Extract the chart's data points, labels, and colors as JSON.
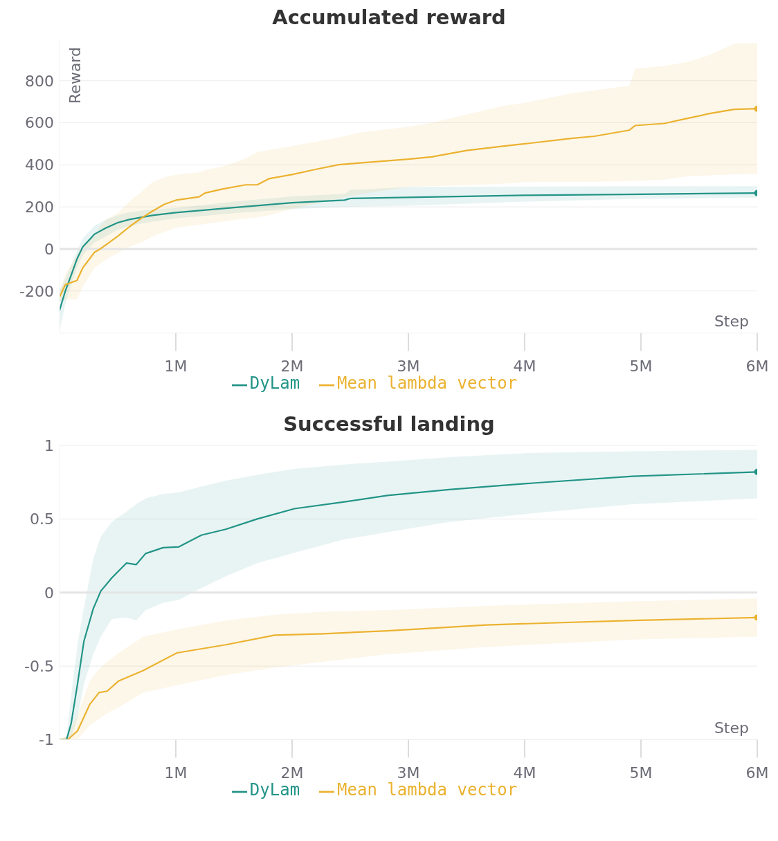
{
  "chart_data": [
    {
      "type": "line",
      "title": "Accumulated reward",
      "xlabel": "Step",
      "ylabel": "Reward",
      "xlim": [
        0,
        6000000
      ],
      "xticks": [
        {
          "value": 1000000,
          "label": "1M"
        },
        {
          "value": 2000000,
          "label": "2M"
        },
        {
          "value": 3000000,
          "label": "3M"
        },
        {
          "value": 4000000,
          "label": "4M"
        },
        {
          "value": 5000000,
          "label": "5M"
        },
        {
          "value": 6000000,
          "label": "6M"
        }
      ],
      "ylim": [
        -400,
        1000
      ],
      "yticks": [
        -200,
        0,
        200,
        400,
        600,
        800
      ],
      "grid": "y",
      "legend": "bottom",
      "ref_lines": [
        {
          "axis": "y",
          "value": 0,
          "color": "#e4e4e4"
        }
      ],
      "series": [
        {
          "name": "DyLam",
          "color": "#229487",
          "x": [
            0,
            50000,
            100000,
            150000,
            200000,
            300000,
            400000,
            500000,
            600000,
            800000,
            1000000,
            1500000,
            2000000,
            2450000,
            2500000,
            3000000,
            4000000,
            5000000,
            6000000
          ],
          "values": [
            -292,
            -200,
            -125,
            -48,
            10,
            70,
            100,
            125,
            140,
            160,
            173,
            197,
            220,
            232,
            240,
            245,
            255,
            260,
            266
          ],
          "lower": [
            -390,
            -260,
            -170,
            -90,
            -30,
            30,
            60,
            90,
            110,
            130,
            145,
            170,
            190,
            200,
            200,
            205,
            225,
            238,
            244
          ],
          "upper": [
            -200,
            -140,
            -80,
            -10,
            50,
            110,
            140,
            160,
            175,
            188,
            195,
            225,
            250,
            262,
            280,
            295,
            297,
            298,
            298
          ]
        },
        {
          "name": "Mean lambda vector",
          "color": "#ebb22f",
          "x": [
            0,
            50000,
            150000,
            200000,
            300000,
            350000,
            400000,
            500000,
            600000,
            700000,
            800000,
            900000,
            1000000,
            1200000,
            1250000,
            1400000,
            1600000,
            1700000,
            1800000,
            2000000,
            2200000,
            2400000,
            2600000,
            3000000,
            3200000,
            3500000,
            3800000,
            4000000,
            4400000,
            4600000,
            4900000,
            4950000,
            5200000,
            5400000,
            5600000,
            5800000,
            6000000
          ],
          "values": [
            -228,
            -170,
            -150,
            -90,
            -16,
            0,
            20,
            60,
            105,
            145,
            180,
            212,
            232,
            248,
            266,
            285,
            305,
            305,
            334,
            354,
            378,
            401,
            410,
            427,
            438,
            468,
            488,
            500,
            526,
            536,
            565,
            587,
            597,
            621,
            645,
            664,
            667
          ],
          "lower": [
            -250,
            -240,
            -240,
            -180,
            -90,
            -70,
            -50,
            -20,
            10,
            30,
            60,
            80,
            100,
            115,
            118,
            130,
            145,
            150,
            160,
            190,
            215,
            240,
            262,
            295,
            298,
            303,
            310,
            318,
            320,
            320,
            322,
            324,
            330,
            345,
            350,
            355,
            357
          ],
          "upper": [
            -200,
            -120,
            -30,
            20,
            60,
            110,
            140,
            170,
            225,
            270,
            318,
            340,
            353,
            365,
            375,
            392,
            430,
            460,
            470,
            489,
            510,
            530,
            555,
            581,
            600,
            639,
            679,
            695,
            740,
            754,
            777,
            858,
            870,
            890,
            924,
            976,
            980
          ]
        }
      ]
    },
    {
      "type": "line",
      "title": "Successful landing",
      "xlabel": "Step",
      "xlim": [
        0,
        6000000
      ],
      "xticks": [
        {
          "value": 1000000,
          "label": "1M"
        },
        {
          "value": 2000000,
          "label": "2M"
        },
        {
          "value": 3000000,
          "label": "3M"
        },
        {
          "value": 4000000,
          "label": "4M"
        },
        {
          "value": 5000000,
          "label": "5M"
        },
        {
          "value": 6000000,
          "label": "6M"
        }
      ],
      "ylim": [
        -1,
        1
      ],
      "yticks": [
        -1,
        -0.5,
        0,
        0.5,
        1
      ],
      "grid": "y",
      "legend": "bottom",
      "ref_lines": [
        {
          "axis": "y",
          "value": 0,
          "color": "#e4e4e4"
        }
      ],
      "series": [
        {
          "name": "DyLam",
          "color": "#229487",
          "x": [
            0,
            60000,
            100000,
            155000,
            210000,
            290000,
            355000,
            450000,
            575000,
            660000,
            740000,
            890000,
            1025000,
            1220000,
            1430000,
            1700000,
            2020000,
            2440000,
            2820000,
            3350000,
            4090000,
            4930000,
            6000000
          ],
          "values": [
            -1,
            -1,
            -0.89,
            -0.62,
            -0.33,
            -0.11,
            0.01,
            0.1,
            0.2,
            0.19,
            0.265,
            0.305,
            0.31,
            0.39,
            0.43,
            0.5,
            0.57,
            0.615,
            0.66,
            0.7,
            0.745,
            0.79,
            0.82
          ],
          "lower": [
            -1,
            -1,
            -0.99,
            -0.85,
            -0.62,
            -0.42,
            -0.3,
            -0.18,
            -0.17,
            -0.19,
            -0.12,
            -0.07,
            -0.05,
            0.03,
            0.11,
            0.2,
            0.27,
            0.36,
            0.41,
            0.48,
            0.54,
            0.6,
            0.64
          ],
          "upper": [
            -1,
            -0.98,
            -0.7,
            -0.35,
            -0.1,
            0.23,
            0.38,
            0.48,
            0.55,
            0.6,
            0.64,
            0.67,
            0.68,
            0.72,
            0.76,
            0.8,
            0.84,
            0.87,
            0.89,
            0.92,
            0.95,
            0.96,
            0.97
          ]
        },
        {
          "name": "Mean lambda vector",
          "color": "#ebb22f",
          "x": [
            0,
            70000,
            155000,
            260000,
            340000,
            410000,
            510000,
            720000,
            1010000,
            1430000,
            1850000,
            2270000,
            2820000,
            3670000,
            4930000,
            6000000
          ],
          "values": [
            -1,
            -1,
            -0.94,
            -0.76,
            -0.68,
            -0.67,
            -0.6,
            -0.53,
            -0.41,
            -0.355,
            -0.29,
            -0.28,
            -0.26,
            -0.22,
            -0.19,
            -0.17
          ],
          "lower": [
            -1,
            -1,
            -1,
            -0.9,
            -0.86,
            -0.82,
            -0.78,
            -0.68,
            -0.63,
            -0.56,
            -0.51,
            -0.47,
            -0.42,
            -0.37,
            -0.32,
            -0.3
          ],
          "upper": [
            -1,
            -0.97,
            -0.83,
            -0.6,
            -0.52,
            -0.47,
            -0.41,
            -0.3,
            -0.25,
            -0.19,
            -0.15,
            -0.13,
            -0.12,
            -0.09,
            -0.06,
            -0.04
          ]
        }
      ]
    }
  ]
}
